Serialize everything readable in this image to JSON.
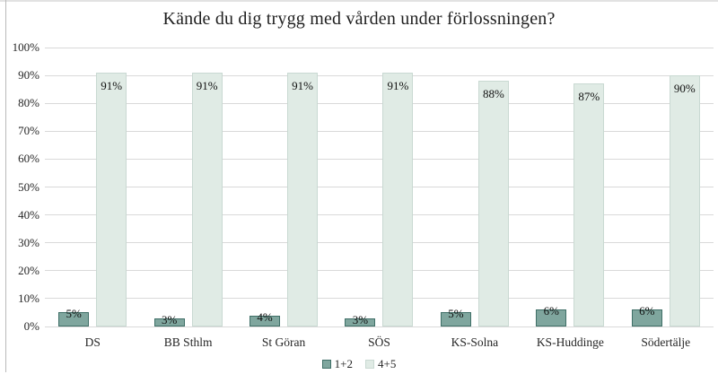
{
  "chart_data": {
    "type": "bar",
    "title": "Kände du dig trygg med vården under förlossningen?",
    "categories": [
      "DS",
      "BB Sthlm",
      "St Göran",
      "SÖS",
      "KS-Solna",
      "KS-Huddinge",
      "Södertälje"
    ],
    "series": [
      {
        "name": "1+2",
        "values": [
          5,
          3,
          4,
          3,
          5,
          6,
          6
        ],
        "fill_color": "#7FA69E",
        "border_color": "#3F6F67",
        "label_position": "outside-end"
      },
      {
        "name": "4+5",
        "values": [
          91,
          91,
          91,
          91,
          88,
          87,
          90
        ],
        "fill_color": "#E0EBE5",
        "border_color": "#C9D9D2",
        "label_position": "inside-end"
      }
    ],
    "value_suffix": "%",
    "ylim": [
      0,
      100
    ],
    "ytick_step": 10,
    "ytick_labels": [
      "0%",
      "10%",
      "20%",
      "30%",
      "40%",
      "50%",
      "60%",
      "70%",
      "80%",
      "90%",
      "100%"
    ],
    "grid": true,
    "gridline_color": "#d9d9d9",
    "legend_position": "bottom",
    "xlabel": "",
    "ylabel": ""
  }
}
